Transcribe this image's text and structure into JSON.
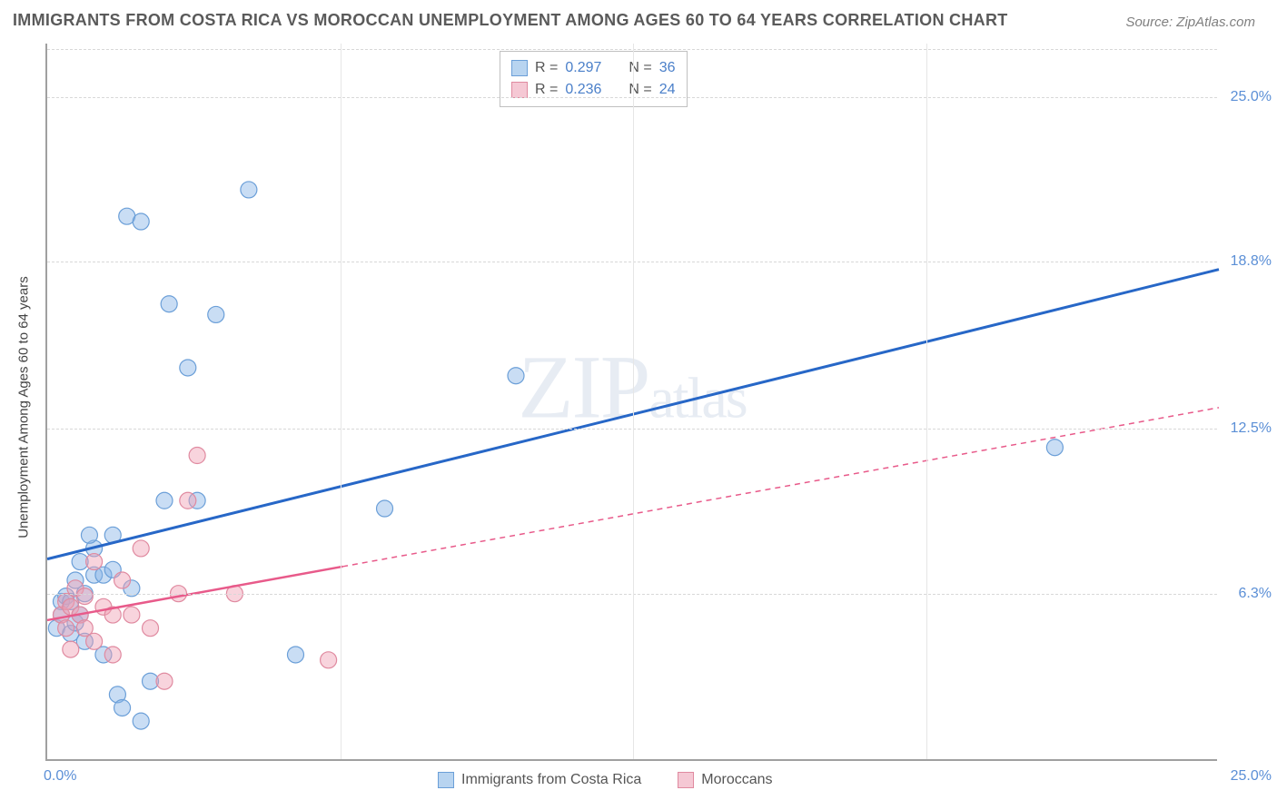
{
  "title": "IMMIGRANTS FROM COSTA RICA VS MOROCCAN UNEMPLOYMENT AMONG AGES 60 TO 64 YEARS CORRELATION CHART",
  "source": "Source: ZipAtlas.com",
  "watermark_zip": "ZIP",
  "watermark_atlas": "atlas",
  "ylabel": "Unemployment Among Ages 60 to 64 years",
  "chart": {
    "type": "scatter",
    "xlim": [
      0,
      25
    ],
    "ylim": [
      0,
      27
    ],
    "background_color": "#ffffff",
    "grid_color_h": "#d8d8d8",
    "grid_color_v": "#e6e6e6",
    "axis_color": "#a0a0a0",
    "tick_color": "#5b8fd6",
    "yticks": [
      {
        "v": 6.3,
        "label": "6.3%"
      },
      {
        "v": 12.5,
        "label": "12.5%"
      },
      {
        "v": 18.8,
        "label": "18.8%"
      },
      {
        "v": 25.0,
        "label": "25.0%"
      }
    ],
    "x_left_label": "0.0%",
    "x_right_label": "25.0%",
    "vgrid_x": [
      6.25,
      12.5,
      18.75
    ],
    "series": [
      {
        "name": "Immigrants from Costa Rica",
        "color_fill": "rgba(135, 180, 230, 0.45)",
        "color_stroke": "#6b9fd8",
        "swatch_fill": "#b8d4f0",
        "swatch_border": "#6b9fd8",
        "line_color": "#2767c7",
        "line_width": 3,
        "line_dash": "none",
        "r_label": "R =",
        "r_value": "0.297",
        "n_label": "N =",
        "n_value": "36",
        "trend": {
          "x1": 0,
          "y1": 7.6,
          "x2": 25,
          "y2": 18.5
        },
        "points": [
          [
            0.2,
            5.0
          ],
          [
            0.3,
            6.0
          ],
          [
            0.3,
            5.5
          ],
          [
            0.4,
            6.2
          ],
          [
            0.5,
            6.0
          ],
          [
            0.5,
            4.8
          ],
          [
            0.6,
            5.2
          ],
          [
            0.6,
            6.8
          ],
          [
            0.7,
            5.5
          ],
          [
            0.7,
            7.5
          ],
          [
            0.8,
            6.3
          ],
          [
            0.8,
            4.5
          ],
          [
            1.0,
            8.0
          ],
          [
            1.0,
            7.0
          ],
          [
            1.2,
            7.0
          ],
          [
            1.2,
            4.0
          ],
          [
            1.4,
            8.5
          ],
          [
            1.4,
            7.2
          ],
          [
            1.5,
            2.5
          ],
          [
            1.6,
            2.0
          ],
          [
            1.7,
            20.5
          ],
          [
            1.8,
            6.5
          ],
          [
            2.0,
            20.3
          ],
          [
            2.0,
            1.5
          ],
          [
            2.2,
            3.0
          ],
          [
            2.5,
            9.8
          ],
          [
            2.6,
            17.2
          ],
          [
            3.0,
            14.8
          ],
          [
            3.2,
            9.8
          ],
          [
            3.6,
            16.8
          ],
          [
            4.3,
            21.5
          ],
          [
            5.3,
            4.0
          ],
          [
            7.2,
            9.5
          ],
          [
            10.0,
            14.5
          ],
          [
            21.5,
            11.8
          ],
          [
            0.9,
            8.5
          ]
        ]
      },
      {
        "name": "Moroccans",
        "color_fill": "rgba(240, 160, 180, 0.45)",
        "color_stroke": "#e08aa0",
        "swatch_fill": "#f5c8d4",
        "swatch_border": "#e08aa0",
        "line_color": "#e85a8a",
        "line_width": 2.5,
        "line_dash": "6,5",
        "r_label": "R =",
        "r_value": "0.236",
        "n_label": "N =",
        "n_value": "24",
        "trend": {
          "x1": 0,
          "y1": 5.3,
          "x2": 25,
          "y2": 13.3
        },
        "trend_solid_max_x": 6.3,
        "points": [
          [
            0.3,
            5.5
          ],
          [
            0.4,
            5.0
          ],
          [
            0.4,
            6.0
          ],
          [
            0.5,
            5.8
          ],
          [
            0.5,
            4.2
          ],
          [
            0.6,
            6.5
          ],
          [
            0.7,
            5.5
          ],
          [
            0.8,
            5.0
          ],
          [
            0.8,
            6.2
          ],
          [
            1.0,
            4.5
          ],
          [
            1.0,
            7.5
          ],
          [
            1.2,
            5.8
          ],
          [
            1.4,
            5.5
          ],
          [
            1.4,
            4.0
          ],
          [
            1.6,
            6.8
          ],
          [
            1.8,
            5.5
          ],
          [
            2.0,
            8.0
          ],
          [
            2.2,
            5.0
          ],
          [
            2.5,
            3.0
          ],
          [
            2.8,
            6.3
          ],
          [
            3.0,
            9.8
          ],
          [
            3.2,
            11.5
          ],
          [
            4.0,
            6.3
          ],
          [
            6.0,
            3.8
          ]
        ]
      }
    ]
  }
}
